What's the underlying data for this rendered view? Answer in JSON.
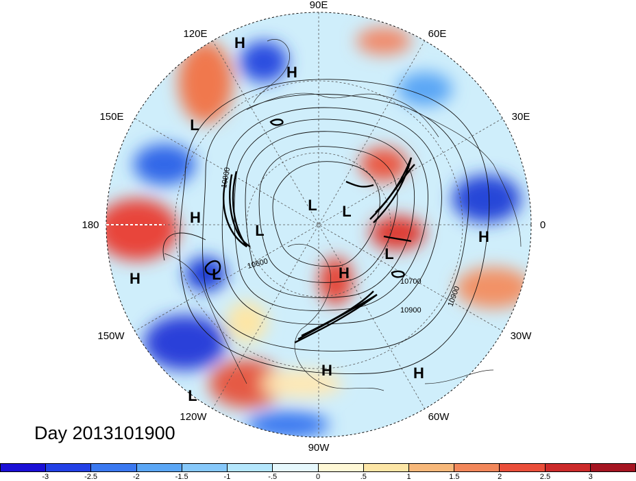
{
  "title": "Day 2013101900",
  "longitude_labels": [
    "90E",
    "60E",
    "30E",
    "0",
    "30W",
    "60W",
    "90W",
    "120W",
    "150W",
    "180",
    "150E",
    "120E"
  ],
  "pressure_markers": [
    {
      "type": "H"
    },
    {
      "type": "H"
    },
    {
      "type": "L"
    },
    {
      "type": "H"
    },
    {
      "type": "L"
    },
    {
      "type": "L"
    },
    {
      "type": "L"
    },
    {
      "type": "H"
    },
    {
      "type": "L"
    },
    {
      "type": "H"
    },
    {
      "type": "L"
    },
    {
      "type": "H"
    },
    {
      "type": "H"
    },
    {
      "type": "H"
    },
    {
      "type": "L"
    }
  ],
  "contour_labels": [
    "10800",
    "10600",
    "10700",
    "10900",
    "10900"
  ],
  "colorbar": {
    "colors": [
      "#1a0fd6",
      "#2240e6",
      "#3a78f0",
      "#5aa6f5",
      "#86c8fa",
      "#b4e6fc",
      "#e6f8fd",
      "#fff8d6",
      "#fde6a6",
      "#f7b87a",
      "#f2875a",
      "#ea4e3a",
      "#cc2a2a",
      "#a51421"
    ],
    "tick_labels": [
      "-3",
      "-2.5",
      "-2",
      "-1.5",
      "-1",
      "-.5",
      "0",
      ".5",
      "1",
      "1.5",
      "2",
      "2.5",
      "3"
    ]
  }
}
